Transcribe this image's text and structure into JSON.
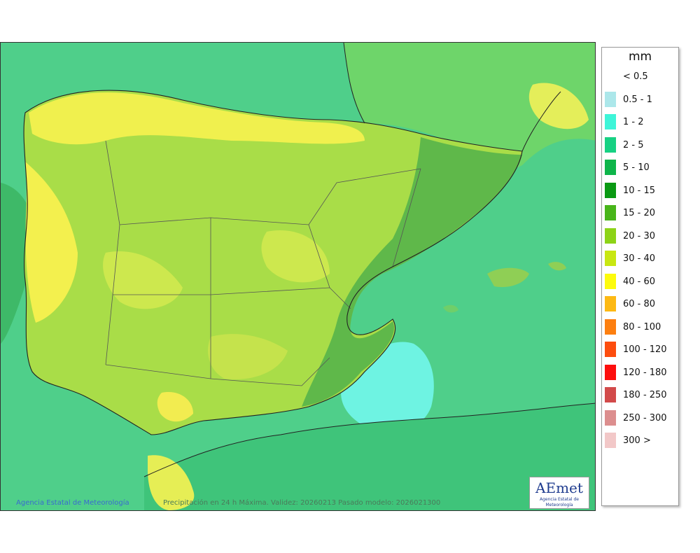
{
  "legend": {
    "unit": "mm",
    "items": [
      {
        "label": "< 0.5",
        "color": "#ffffff"
      },
      {
        "label": "0.5 - 1",
        "color": "#ace7ea"
      },
      {
        "label": "1 - 2",
        "color": "#3ef5d8"
      },
      {
        "label": "2 - 5",
        "color": "#17d183"
      },
      {
        "label": "5 - 10",
        "color": "#0eb54a"
      },
      {
        "label": "10 - 15",
        "color": "#0a9913"
      },
      {
        "label": "15 - 20",
        "color": "#48b51a"
      },
      {
        "label": "20 - 30",
        "color": "#8dd317"
      },
      {
        "label": "30 - 40",
        "color": "#c8e712"
      },
      {
        "label": "40 - 60",
        "color": "#fdfb0d"
      },
      {
        "label": "60 - 80",
        "color": "#fdb914"
      },
      {
        "label": "80 - 100",
        "color": "#fd7f10"
      },
      {
        "label": "100 - 120",
        "color": "#fd4d0e"
      },
      {
        "label": "120 - 180",
        "color": "#fd0e0d"
      },
      {
        "label": "180 - 250",
        "color": "#d24a4a"
      },
      {
        "label": "250 - 300",
        "color": "#dc8e8e"
      },
      {
        "label": "300 >",
        "color": "#f2c8c8"
      }
    ]
  },
  "credits": {
    "left": "Agencia Estatal de Meteorología",
    "center": "Precipitación en 24 h Máxima. Validez: 20260213 Pasado modelo: 2026021300"
  },
  "logo": {
    "text": "AEmet",
    "subtitle": "Agencia Estatal de Meteorología"
  }
}
